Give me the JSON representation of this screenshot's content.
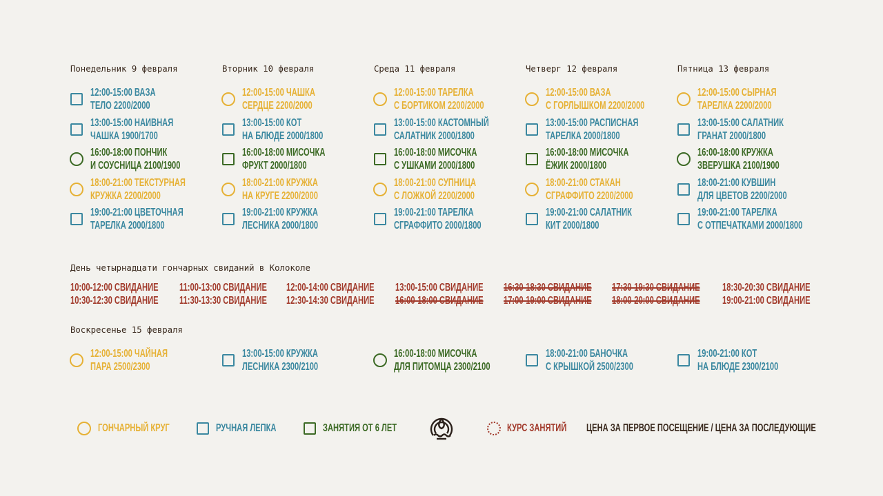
{
  "colors": {
    "yellow": "#e6b135",
    "teal": "#3b88a0",
    "green": "#3c6a25",
    "red": "#a23b2c",
    "brown": "#3a2a1e"
  },
  "week": [
    {
      "day": "Понедельник 9 февраля",
      "items": [
        {
          "shape": "square",
          "color": "teal",
          "line1": "12:00-15:00 ВАЗА",
          "line2": "ТЕЛО 2200/2000"
        },
        {
          "shape": "square",
          "color": "teal",
          "line1": "13:00-15:00 НАИВНАЯ",
          "line2": "ЧАШКА 1900/1700"
        },
        {
          "shape": "circle",
          "color": "green",
          "line1": "16:00-18:00 ПОНЧИК",
          "line2": "И СОУСНИЦА 2100/1900"
        },
        {
          "shape": "circle",
          "color": "yellow",
          "line1": "18:00-21:00 ТЕКСТУРНАЯ",
          "line2": "КРУЖКА 2200/2000"
        },
        {
          "shape": "square",
          "color": "teal",
          "line1": "19:00-21:00 ЦВЕТОЧНАЯ",
          "line2": "ТАРЕЛКА 2000/1800"
        }
      ]
    },
    {
      "day": "Вторник 10 февраля",
      "items": [
        {
          "shape": "circle",
          "color": "yellow",
          "line1": "12:00-15:00 ЧАШКА",
          "line2": "СЕРДЦЕ 2200/2000"
        },
        {
          "shape": "square",
          "color": "teal",
          "line1": "13:00-15:00 КОТ",
          "line2": "НА БЛЮДЕ 2000/1800"
        },
        {
          "shape": "square",
          "color": "green",
          "line1": "16:00-18:00 МИСОЧКА",
          "line2": "ФРУКТ 2000/1800"
        },
        {
          "shape": "circle",
          "color": "yellow",
          "line1": "18:00-21:00 КРУЖКА",
          "line2": "НА КРУГЕ 2200/2000"
        },
        {
          "shape": "square",
          "color": "teal",
          "line1": "19:00-21:00 КРУЖКА",
          "line2": "ЛЕСНИКА 2000/1800"
        }
      ]
    },
    {
      "day": "Среда 11 февраля",
      "items": [
        {
          "shape": "circle",
          "color": "yellow",
          "line1": "12:00-15:00 ТАРЕЛКА",
          "line2": "С БОРТИКОМ 2200/2000"
        },
        {
          "shape": "square",
          "color": "teal",
          "line1": "13:00-15:00 КАСТОМНЫЙ",
          "line2": "САЛАТНИК 2000/1800"
        },
        {
          "shape": "square",
          "color": "green",
          "line1": "16:00-18:00 МИСОЧКА",
          "line2": "С УШКАМИ 2000/1800"
        },
        {
          "shape": "circle",
          "color": "yellow",
          "line1": "18:00-21:00 СУПНИЦА",
          "line2": "С ЛОЖКОЙ 2200/2000"
        },
        {
          "shape": "square",
          "color": "teal",
          "line1": "19:00-21:00 ТАРЕЛКА",
          "line2": "СГРАФФИТО 2000/1800"
        }
      ]
    },
    {
      "day": "Четверг 12 февраля",
      "items": [
        {
          "shape": "circle",
          "color": "yellow",
          "line1": "12:00-15:00 ВАЗА",
          "line2": "С ГОРЛЫШКОМ 2200/2000"
        },
        {
          "shape": "square",
          "color": "teal",
          "line1": "13:00-15:00 РАСПИСНАЯ",
          "line2": "ТАРЕЛКА 2000/1800"
        },
        {
          "shape": "square",
          "color": "green",
          "line1": "16:00-18:00 МИСОЧКА",
          "line2": "ЁЖИК 2000/1800"
        },
        {
          "shape": "circle",
          "color": "yellow",
          "line1": "18:00-21:00 СТАКАН",
          "line2": "СГРАФФИТО 2200/2000"
        },
        {
          "shape": "square",
          "color": "teal",
          "line1": "19:00-21:00 САЛАТНИК",
          "line2": "КИТ 2000/1800"
        }
      ]
    },
    {
      "day": "Пятница 13 февраля",
      "items": [
        {
          "shape": "circle",
          "color": "yellow",
          "line1": "12:00-15:00 СЫРНАЯ",
          "line2": "ТАРЕЛКА 2200/2000"
        },
        {
          "shape": "square",
          "color": "teal",
          "line1": "13:00-15:00 САЛАТНИК",
          "line2": "ГРАНАТ 2000/1800"
        },
        {
          "shape": "circle",
          "color": "green",
          "line1": "16:00-18:00 КРУЖКА",
          "line2": "ЗВЕРУШКА 2100/1900"
        },
        {
          "shape": "square",
          "color": "teal",
          "line1": "18:00-21:00 КУВШИН",
          "line2": "ДЛЯ ЦВЕТОВ 2200/2000"
        },
        {
          "shape": "square",
          "color": "teal",
          "line1": "19:00-21:00 ТАРЕЛКА",
          "line2": "С ОТПЕЧАТКАМИ 2000/1800"
        }
      ]
    }
  ],
  "dates_event": {
    "title": "День четырнадцати гончарных свиданий в Колоколе",
    "slots": [
      [
        {
          "text": "10:00-12:00 СВИДАНИЕ",
          "struck": false
        },
        {
          "text": "10:30-12:30 СВИДАНИЕ",
          "struck": false
        }
      ],
      [
        {
          "text": "11:00-13:00 СВИДАНИЕ",
          "struck": false
        },
        {
          "text": "11:30-13:30 СВИДАНИЕ",
          "struck": false
        }
      ],
      [
        {
          "text": "12:00-14:00 СВИДАНИЕ",
          "struck": false
        },
        {
          "text": "12:30-14:30 СВИДАНИЕ",
          "struck": false
        }
      ],
      [
        {
          "text": "13:00-15:00 СВИДАНИЕ",
          "struck": false
        },
        {
          "text": "16:00-18:00 СВИДАНИЕ",
          "struck": true
        }
      ],
      [
        {
          "text": "16:30-18:30 СВИДАНИЕ",
          "struck": true
        },
        {
          "text": "17:00-19:00 СВИДАНИЕ",
          "struck": true
        }
      ],
      [
        {
          "text": "17:30-19:30 СВИДАНИЕ",
          "struck": true
        },
        {
          "text": "18:00-20:00 СВИДАНИЕ",
          "struck": true
        }
      ],
      [
        {
          "text": "18:30-20:30 СВИДАНИЕ",
          "struck": false
        },
        {
          "text": "19:00-21:00 СВИДАНИЕ",
          "struck": false
        }
      ]
    ]
  },
  "sunday": {
    "day": "Воскресенье 15 февраля",
    "items": [
      {
        "shape": "circle",
        "color": "yellow",
        "line1": "12:00-15:00 ЧАЙНАЯ",
        "line2": "ПАРА 2500/2300"
      },
      {
        "shape": "square",
        "color": "teal",
        "line1": "13:00-15:00 КРУЖКА",
        "line2": "ЛЕСНИКА 2300/2100"
      },
      {
        "shape": "circle",
        "color": "green",
        "line1": "16:00-18:00 МИСОЧКА",
        "line2": "ДЛЯ ПИТОМЦА 2300/2100"
      },
      {
        "shape": "square",
        "color": "teal",
        "line1": "18:00-21:00 БАНОЧКА",
        "line2": "С КРЫШКОЙ 2500/2300"
      },
      {
        "shape": "square",
        "color": "teal",
        "line1": "19:00-21:00 КОТ",
        "line2": "НА БЛЮДЕ 2300/2100"
      }
    ]
  },
  "legend": {
    "wheel": "ГОНЧАРНЫЙ КРУГ",
    "handbuilding": "РУЧНАЯ ЛЕПКА",
    "kids": "ЗАНЯТИЯ ОТ 6 ЛЕТ",
    "course": "КУРС ЗАНЯТИЙ",
    "price_note": "ЦЕНА ЗА ПЕРВОЕ ПОСЕЩЕНИЕ / ЦЕНА ЗА ПОСЛЕДУЮЩИЕ",
    "logo_icon": "kolokol-logo-icon"
  }
}
